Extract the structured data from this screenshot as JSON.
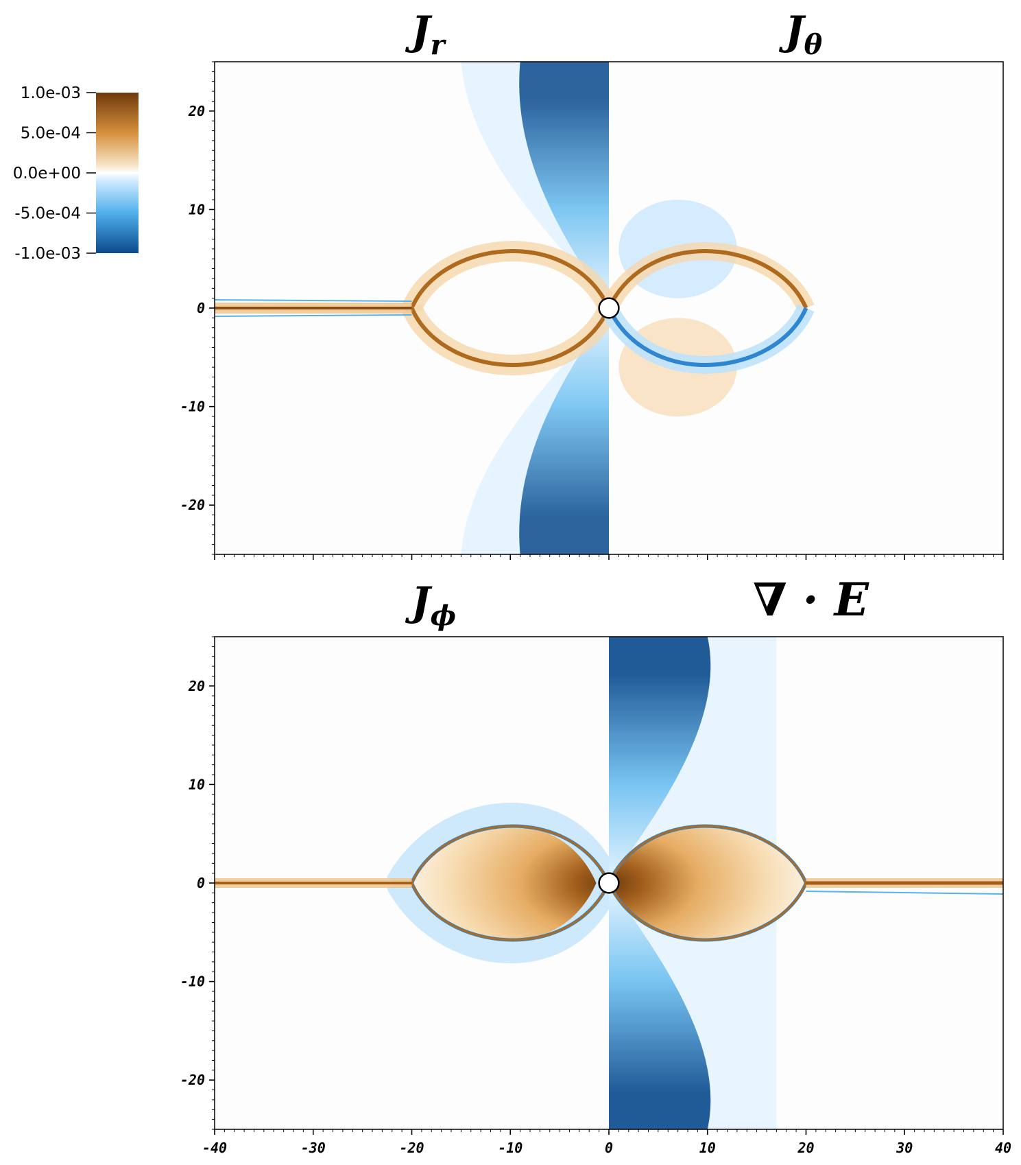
{
  "figure": {
    "panel_titles": {
      "top_left": {
        "main": "J",
        "sub": "r"
      },
      "top_right": {
        "main": "J",
        "sub": "θ"
      },
      "bottom_left": {
        "main": "J",
        "sub": "ϕ"
      },
      "bottom_right": "∇ · E"
    },
    "colorbar": {
      "labels": [
        "1.0e-03",
        "5.0e-04",
        "0.0e+00",
        "-5.0e-04",
        "-1.0e-03"
      ],
      "colors": {
        "pos_max": "#6e3a0c",
        "pos_mid": "#d68f3c",
        "zero": "#ffffff",
        "neg_mid": "#4fb0ec",
        "neg_max": "#0b4a8c"
      }
    }
  },
  "chart_data": [
    {
      "type": "heatmap",
      "panel": "top",
      "left_field": "J_r",
      "right_field": "J_θ",
      "xlim": [
        -40,
        40
      ],
      "ylim": [
        -25,
        25
      ],
      "x_ticks": [
        -40,
        -30,
        -20,
        -10,
        0,
        10,
        20,
        30,
        40
      ],
      "y_ticks": [
        20,
        10,
        0,
        -10,
        -20
      ],
      "color_range": [
        -0.001,
        0.001
      ],
      "central_object_radius": 1,
      "separatrix_extent_x": 20,
      "separatrix_extent_y": 5.8
    },
    {
      "type": "heatmap",
      "panel": "bottom",
      "left_field": "J_ϕ",
      "right_field": "∇·E",
      "xlim": [
        -40,
        40
      ],
      "ylim": [
        -25,
        25
      ],
      "x_ticks": [
        -40,
        -30,
        -20,
        -10,
        0,
        10,
        20,
        30,
        40
      ],
      "x_tick_labels": [
        "-40",
        "-30",
        "-20",
        "-10",
        "0",
        "10",
        "20",
        "30",
        "40"
      ],
      "y_ticks": [
        20,
        10,
        0,
        -10,
        -20
      ],
      "color_range": [
        -0.001,
        0.001
      ],
      "central_object_radius": 1,
      "separatrix_extent_x": 20,
      "separatrix_extent_y": 5.8
    }
  ]
}
